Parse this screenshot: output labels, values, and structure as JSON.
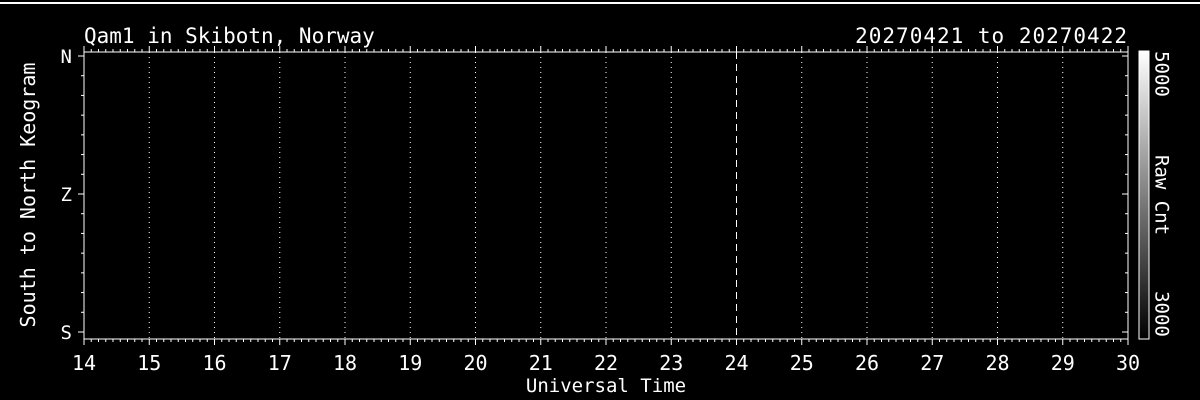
{
  "window": {
    "background_color": "#000000",
    "foreground_color": "#ffffff"
  },
  "chart_data": {
    "type": "heatmap",
    "title": "Qam1 in Skibotn, Norway",
    "date_range": "20270421 to 20270422",
    "xlabel": "Universal Time",
    "ylabel": "South to North Keogram",
    "x_tick_labels": [
      "14",
      "15",
      "16",
      "17",
      "18",
      "19",
      "20",
      "21",
      "22",
      "23",
      "24",
      "25",
      "26",
      "27",
      "28",
      "29",
      "30"
    ],
    "xlim": [
      14,
      30
    ],
    "x_minor_ticks_per_interval": 8,
    "y_tick_labels": [
      "N",
      "Z",
      "S"
    ],
    "y_minor_ticks_per_interval": 6,
    "grid": "dotted vertical gridline at each hour",
    "day_boundary": {
      "x": "24",
      "style": "dashed"
    },
    "values": [],
    "note": "keogram plot area is empty (uniform black, no counts rendered)",
    "colorbar": {
      "label": "Raw Cnt",
      "top_tick": "5000",
      "bottom_tick": "3000",
      "top_color": "#ffffff",
      "bottom_color": "#000000"
    }
  }
}
